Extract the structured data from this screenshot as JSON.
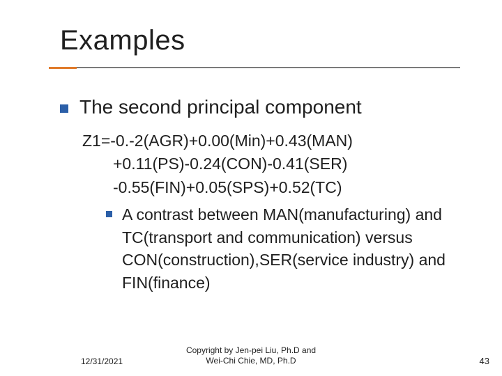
{
  "title": "Examples",
  "bullet_main": "The second principal component",
  "equation": {
    "line1": "Z1=-0.-2(AGR)+0.00(Min)+0.43(MAN)",
    "line2": "+0.11(PS)-0.24(CON)-0.41(SER)",
    "line3": "-0.55(FIN)+0.05(SPS)+0.52(TC)"
  },
  "sub_bullet": "A contrast between MAN(manufacturing) and TC(transport and communication) versus CON(construction),SER(service industry) and FIN(finance)",
  "footer": {
    "date": "12/31/2021",
    "copyright_line1": "Copyright by Jen-pei Liu, Ph.D and",
    "copyright_line2": "Wei-Chi Chie, MD, Ph.D",
    "page": "43"
  },
  "style": {
    "accent_color": "#e07a2a",
    "bullet_color": "#2b5fa8",
    "rule_color": "#7a7a7a",
    "text_color": "#1f1f1f",
    "background": "#ffffff",
    "title_fontsize": 40,
    "body_fontsize": 23,
    "bullet_main_fontsize": 28,
    "footer_fontsize": 12
  }
}
